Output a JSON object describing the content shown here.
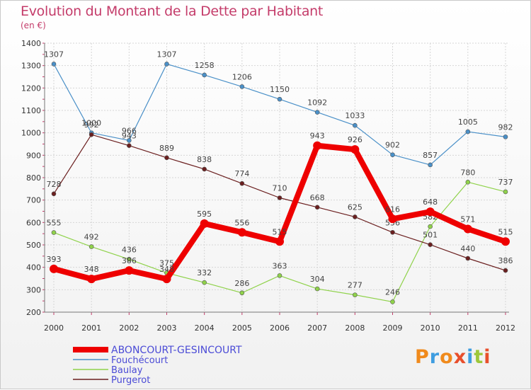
{
  "header": {
    "title": "Evolution du Montant de la Dette par Habitant",
    "unit": "(en €)"
  },
  "logo": {
    "text": "Proxiti",
    "colors": [
      "#f08a1c",
      "#3e9de0",
      "#f08a1c",
      "#e84f2c",
      "#3e9de0",
      "#9dc73a",
      "#e84f2c"
    ]
  },
  "chart_data": {
    "type": "line",
    "title": "Evolution du Montant de la Dette par Habitant",
    "ylabel": "(en €)",
    "xlabel": "",
    "x": [
      2000,
      2001,
      2002,
      2003,
      2004,
      2005,
      2006,
      2007,
      2008,
      2009,
      2010,
      2011,
      2012
    ],
    "ylim": [
      200,
      1400
    ],
    "yticks": [
      200,
      300,
      400,
      500,
      600,
      700,
      800,
      900,
      1000,
      1100,
      1200,
      1300,
      1400
    ],
    "grid": true,
    "legend_position": "bottom-left",
    "series": [
      {
        "name": "ABONCOURT-GESINCOURT",
        "color": "#ee0000",
        "values": [
          393,
          348,
          386,
          348,
          595,
          556,
          515,
          943,
          926,
          616,
          648,
          571,
          515
        ],
        "labels": [
          "393",
          "348",
          "386",
          "348",
          "595",
          "556",
          "515",
          "943",
          "926",
          "616",
          "648",
          "571",
          "515"
        ]
      },
      {
        "name": "Fouchécourt",
        "color": "#4a90c8",
        "values": [
          1307,
          1000,
          966,
          1307,
          1258,
          1206,
          1150,
          1092,
          1033,
          902,
          857,
          1005,
          982
        ],
        "labels": [
          "1307",
          "1000",
          "966",
          "1307",
          "1258",
          "1206",
          "1150",
          "1092",
          "1033",
          "902",
          "857",
          "1005",
          "982"
        ]
      },
      {
        "name": "Baulay",
        "color": "#8fd24a",
        "values": [
          555,
          492,
          436,
          375,
          332,
          286,
          363,
          304,
          277,
          246,
          582,
          780,
          737
        ],
        "labels": [
          "555",
          "492",
          "436",
          "375",
          "332",
          "286",
          "363",
          "304",
          "277",
          "246",
          "582",
          "780",
          "737"
        ]
      },
      {
        "name": "Purgerot",
        "color": "#6b1f1f",
        "values": [
          728,
          992,
          943,
          889,
          838,
          774,
          710,
          668,
          625,
          556,
          501,
          440,
          386
        ],
        "labels": [
          "728",
          "992",
          "943",
          "889",
          "838",
          "774",
          "710",
          "668",
          "625",
          "556",
          "501",
          "440",
          "386"
        ]
      }
    ]
  }
}
